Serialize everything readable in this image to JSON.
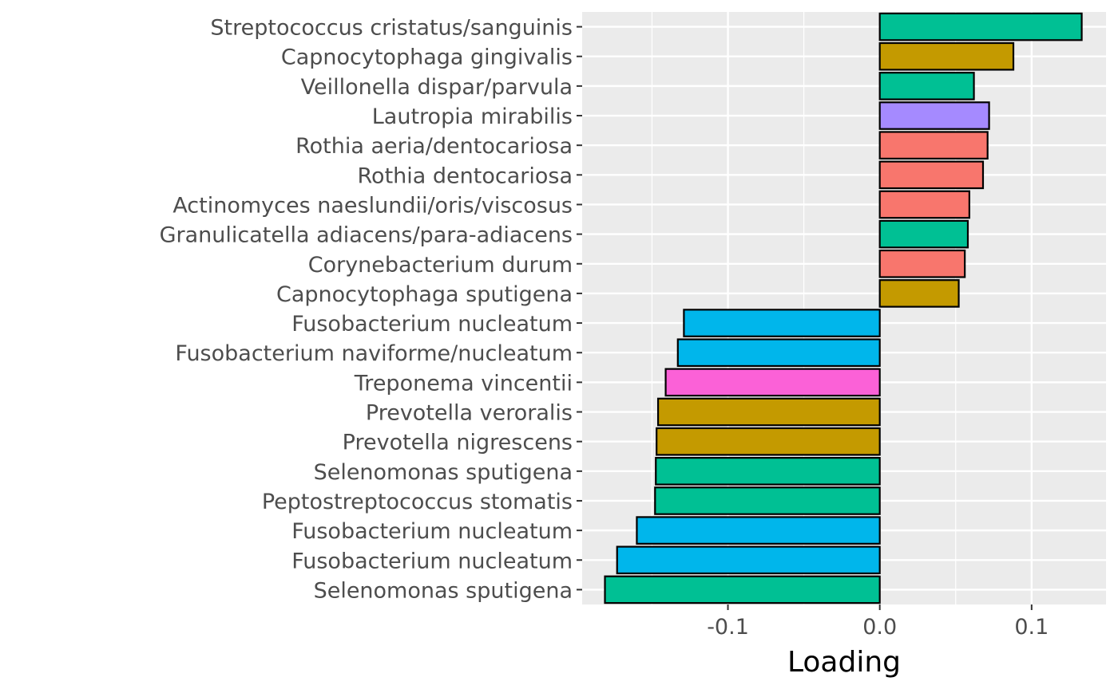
{
  "chart_data": {
    "type": "bar",
    "orientation": "horizontal",
    "title": "",
    "xlabel": "Loading",
    "ylabel": "",
    "xlim": [
      -0.196,
      0.149
    ],
    "x_ticks": [
      -0.1,
      0.0,
      0.1
    ],
    "x_tick_labels": [
      "-0.1",
      "0.0",
      "0.1"
    ],
    "grid": true,
    "legend": "none",
    "categories": [
      "Streptococcus cristatus/sanguinis",
      "Capnocytophaga gingivalis",
      "Veillonella dispar/parvula",
      "Lautropia mirabilis",
      "Rothia aeria/dentocariosa",
      "Rothia dentocariosa",
      "Actinomyces naeslundii/oris/viscosus",
      "Granulicatella adiacens/para-adiacens",
      "Corynebacterium durum",
      "Capnocytophaga sputigena",
      "Fusobacterium nucleatum",
      "Fusobacterium naviforme/nucleatum",
      "Treponema vincentii",
      "Prevotella veroralis",
      "Prevotella nigrescens",
      "Selenomonas sputigena",
      "Peptostreptococcus stomatis",
      "Fusobacterium nucleatum",
      "Fusobacterium nucleatum",
      "Selenomonas sputigena"
    ],
    "values": [
      0.133,
      0.088,
      0.062,
      0.072,
      0.071,
      0.068,
      0.059,
      0.058,
      0.056,
      0.052,
      -0.129,
      -0.133,
      -0.141,
      -0.146,
      -0.147,
      -0.1475,
      -0.148,
      -0.16,
      -0.173,
      -0.181
    ],
    "colors": [
      "#00C094",
      "#C49A00",
      "#00C094",
      "#A58AFF",
      "#F8766D",
      "#F8766D",
      "#F8766D",
      "#00C094",
      "#F8766D",
      "#C49A00",
      "#00B6EB",
      "#00B6EB",
      "#FB61D7",
      "#C49A00",
      "#C49A00",
      "#00C094",
      "#00C094",
      "#00B6EB",
      "#00B6EB",
      "#00C094"
    ]
  }
}
